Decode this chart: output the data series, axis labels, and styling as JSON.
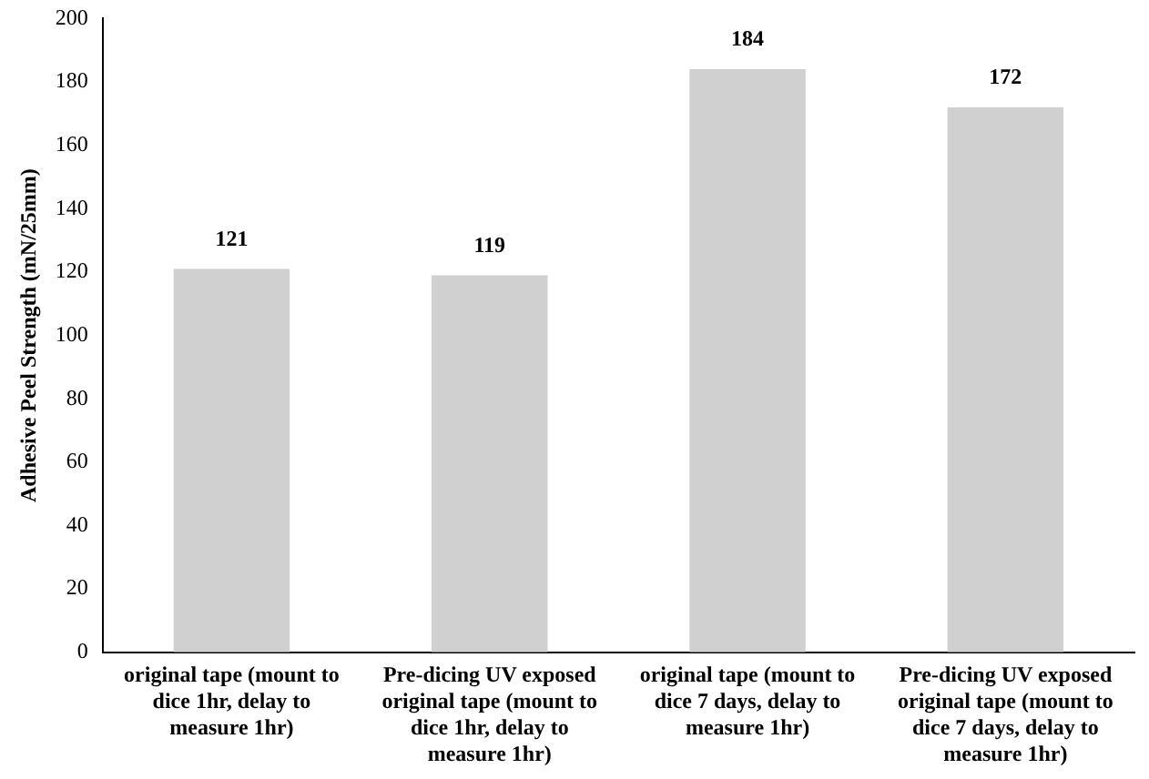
{
  "chart_data": {
    "type": "bar",
    "ylabel": "Adhesive Peel Strength (mN/25mm)",
    "categories": [
      "original tape (mount to dice 1hr, delay to measure 1hr)",
      "Pre-dicing UV exposed original tape (mount to dice 1hr, delay to measure 1hr)",
      "original tape (mount to dice 7 days, delay to measure 1hr)",
      "Pre-dicing UV exposed original tape (mount to dice 7 days, delay to measure 1hr)"
    ],
    "values": [
      121,
      119,
      184,
      172
    ],
    "color": "#d0d0d0",
    "ylim": [
      0,
      200
    ],
    "yticks": [
      0,
      20,
      40,
      60,
      80,
      100,
      120,
      140,
      160,
      180,
      200
    ],
    "grid": false,
    "legend": false,
    "data_labels": true
  }
}
